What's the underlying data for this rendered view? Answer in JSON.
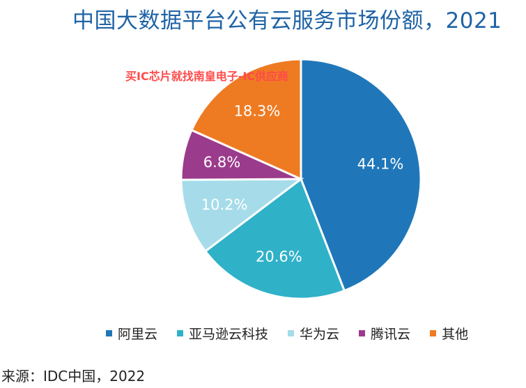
{
  "chart_data": {
    "type": "pie",
    "title": "中国大数据平台公有云服务市场份额，2021",
    "categories": [
      "阿里云",
      "亚马逊云科技",
      "华为云",
      "腾讯云",
      "其他"
    ],
    "values": [
      44.1,
      20.6,
      10.2,
      6.8,
      18.3
    ],
    "labels": [
      "44.1%",
      "20.6%",
      "10.2%",
      "6.8%",
      "18.3%"
    ],
    "colors": [
      "#1f77b9",
      "#2fb1c8",
      "#a6dcea",
      "#9b3b8c",
      "#ee7b22"
    ],
    "legend_position": "bottom",
    "watermark": "买IC芯片就找南皇电子-IC供应商",
    "source": "来源：IDC中国，2022"
  }
}
